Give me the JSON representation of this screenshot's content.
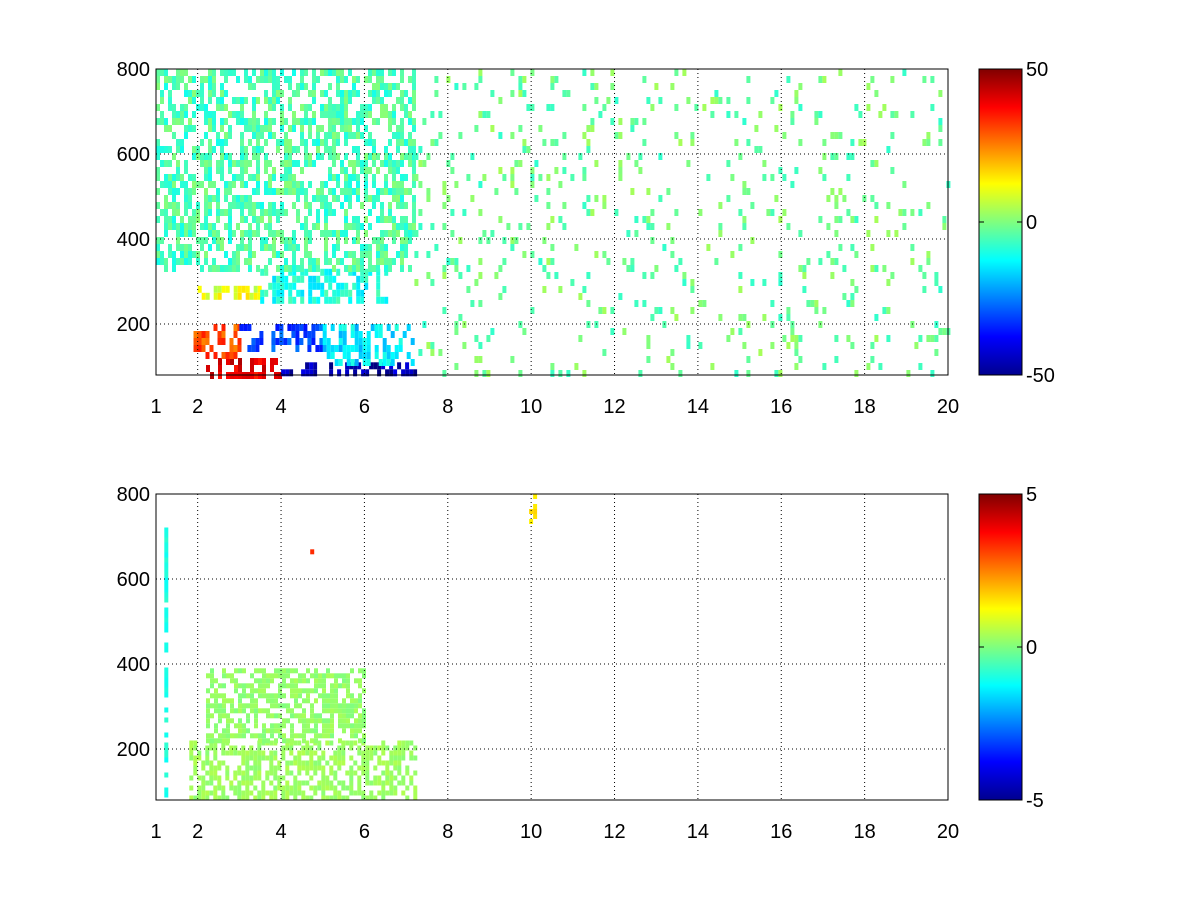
{
  "chart_data": [
    {
      "type": "heatmap",
      "x_ticks": [
        1,
        2,
        4,
        6,
        8,
        10,
        12,
        14,
        16,
        18,
        20
      ],
      "y_ticks": [
        200,
        400,
        600,
        800
      ],
      "xlim": [
        1,
        20
      ],
      "ylim": [
        80,
        800
      ],
      "grid": true,
      "colormap": "jet",
      "colorbar": {
        "ticks": [
          50,
          0,
          -50
        ],
        "clim": [
          -50,
          50
        ]
      },
      "colorbar_tick_labels": [
        "50",
        "0",
        "-50"
      ],
      "x_tick_labels": [
        "1",
        "2",
        "4",
        "6",
        "8",
        "10",
        "12",
        "14",
        "16",
        "18",
        "20"
      ],
      "y_tick_labels": [
        "200",
        "400",
        "600",
        "800"
      ],
      "regions": [
        {
          "x": [
            2.2,
            4.0
          ],
          "y": [
            80,
            120
          ],
          "value": 40
        },
        {
          "x": [
            4.0,
            7.2
          ],
          "y": [
            80,
            110
          ],
          "value": -45
        },
        {
          "x": [
            1.9,
            3.0
          ],
          "y": [
            120,
            200
          ],
          "value": 30
        },
        {
          "x": [
            3.0,
            5.0
          ],
          "y": [
            150,
            200
          ],
          "value": -30
        },
        {
          "x": [
            5.0,
            7.2
          ],
          "y": [
            110,
            200
          ],
          "value": -15
        },
        {
          "x": [
            2.0,
            3.5
          ],
          "y": [
            260,
            290
          ],
          "value": 10
        },
        {
          "x": [
            3.5,
            6.5
          ],
          "y": [
            260,
            330
          ],
          "value": -10
        },
        {
          "x": [
            1.0,
            7.2
          ],
          "y": [
            330,
            800
          ],
          "value": -5
        },
        {
          "x": [
            7.2,
            20.0
          ],
          "y": [
            80,
            800
          ],
          "value": -2
        }
      ]
    },
    {
      "type": "heatmap",
      "x_ticks": [
        1,
        2,
        4,
        6,
        8,
        10,
        12,
        14,
        16,
        18,
        20
      ],
      "y_ticks": [
        200,
        400,
        600,
        800
      ],
      "xlim": [
        1,
        20
      ],
      "ylim": [
        80,
        800
      ],
      "grid": true,
      "colormap": "jet",
      "colorbar": {
        "ticks": [
          5,
          0,
          -5
        ],
        "clim": [
          -5,
          5
        ]
      },
      "colorbar_tick_labels": [
        "5",
        "0",
        "-5"
      ],
      "x_tick_labels": [
        "1",
        "2",
        "4",
        "6",
        "8",
        "10",
        "12",
        "14",
        "16",
        "18",
        "20"
      ],
      "y_tick_labels": [
        "200",
        "400",
        "600",
        "800"
      ],
      "regions": [
        {
          "x": [
            1.8,
            7.2
          ],
          "y": [
            80,
            220
          ],
          "value": 0.3
        },
        {
          "x": [
            2.2,
            6.0
          ],
          "y": [
            220,
            390
          ],
          "value": 0.2
        },
        {
          "x": [
            9.95,
            10.05
          ],
          "y": [
            730,
            800
          ],
          "value": 1.5
        },
        {
          "x": [
            4.7,
            4.8
          ],
          "y": [
            655,
            670
          ],
          "value": 3.5
        },
        {
          "x": [
            1.2,
            1.25
          ],
          "y": [
            80,
            780
          ],
          "value": -1
        }
      ]
    }
  ]
}
